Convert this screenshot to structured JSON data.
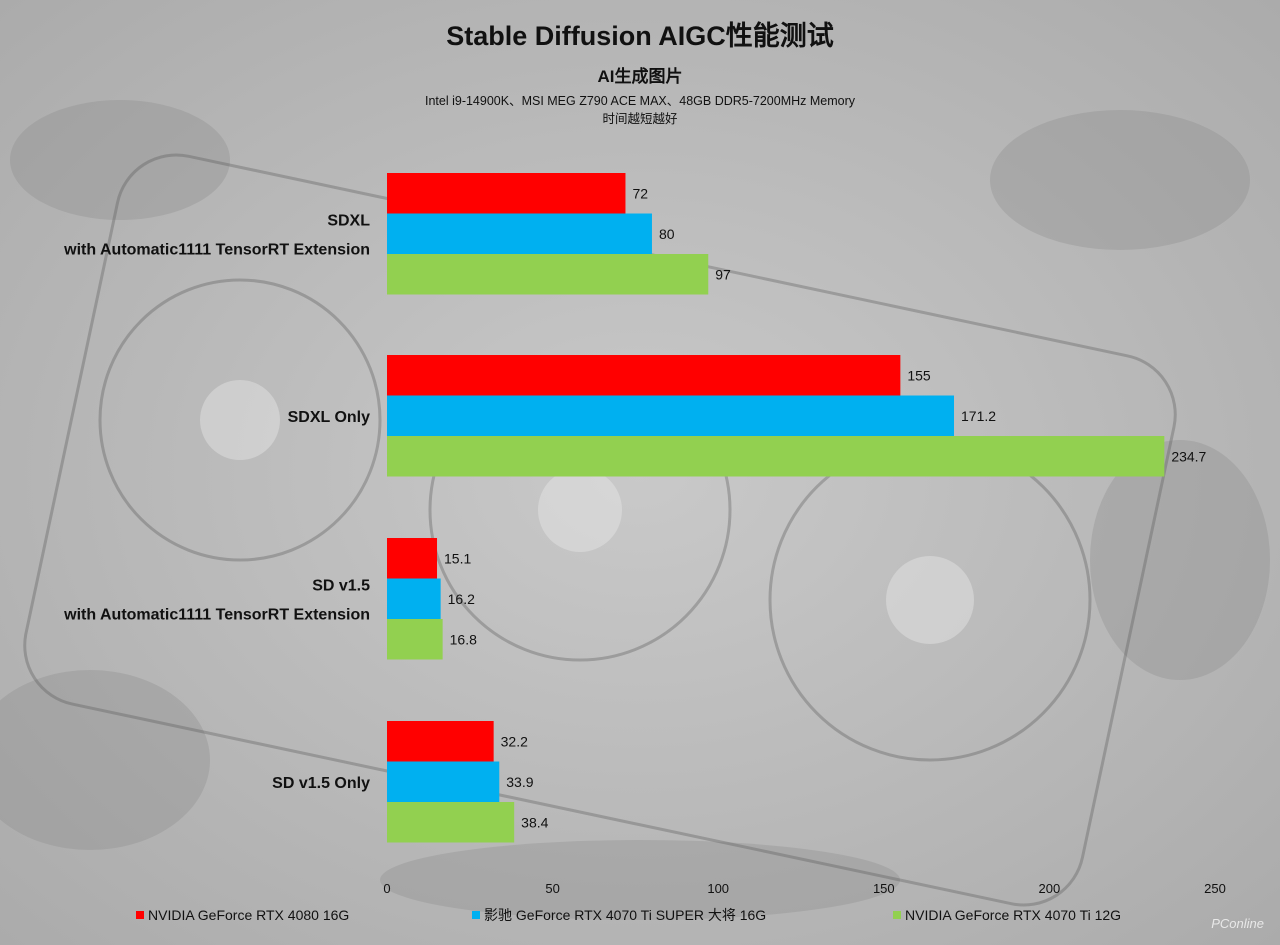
{
  "header": {
    "title": "Stable Diffusion AIGC性能测试",
    "subtitle": "AI生成图片",
    "line3": "Intel i9-14900K、MSI MEG Z790 ACE MAX、48GB DDR5-7200MHz Memory",
    "line4": "时间越短越好"
  },
  "watermark": "PConline",
  "colors": {
    "series1": "#ff0000",
    "series2": "#00b0f0",
    "series3": "#92d050",
    "background": "#b9b9b9"
  },
  "chart_data": {
    "type": "bar",
    "orientation": "horizontal",
    "categories": [
      [
        "SDXL",
        "with Automatic1111 TensorRT Extension"
      ],
      [
        "SDXL Only"
      ],
      [
        "SD v1.5",
        "with Automatic1111 TensorRT Extension"
      ],
      [
        "SD v1.5 Only"
      ]
    ],
    "series": [
      {
        "name": "NVIDIA GeForce RTX 4080 16G",
        "color": "#ff0000",
        "values": [
          72,
          155,
          15.1,
          32.2
        ],
        "labels": [
          "72",
          "155",
          "15.1",
          "32.2"
        ]
      },
      {
        "name": "影驰 GeForce RTX 4070 Ti SUPER 大将 16G",
        "color": "#00b0f0",
        "values": [
          80,
          171.2,
          16.2,
          33.9
        ],
        "labels": [
          "80",
          "171.2",
          "16.2",
          "33.9"
        ]
      },
      {
        "name": "NVIDIA GeForce RTX 4070 Ti 12G",
        "color": "#92d050",
        "values": [
          97,
          234.7,
          16.8,
          38.4
        ],
        "labels": [
          "97",
          "234.7",
          "16.8",
          "38.4"
        ]
      }
    ],
    "xlim": [
      0,
      250
    ],
    "xticks": [
      0,
      50,
      100,
      150,
      200,
      250
    ],
    "xtick_labels": [
      "0",
      "50",
      "100",
      "150",
      "200",
      "250"
    ],
    "grid": false,
    "legend_position": "bottom"
  }
}
